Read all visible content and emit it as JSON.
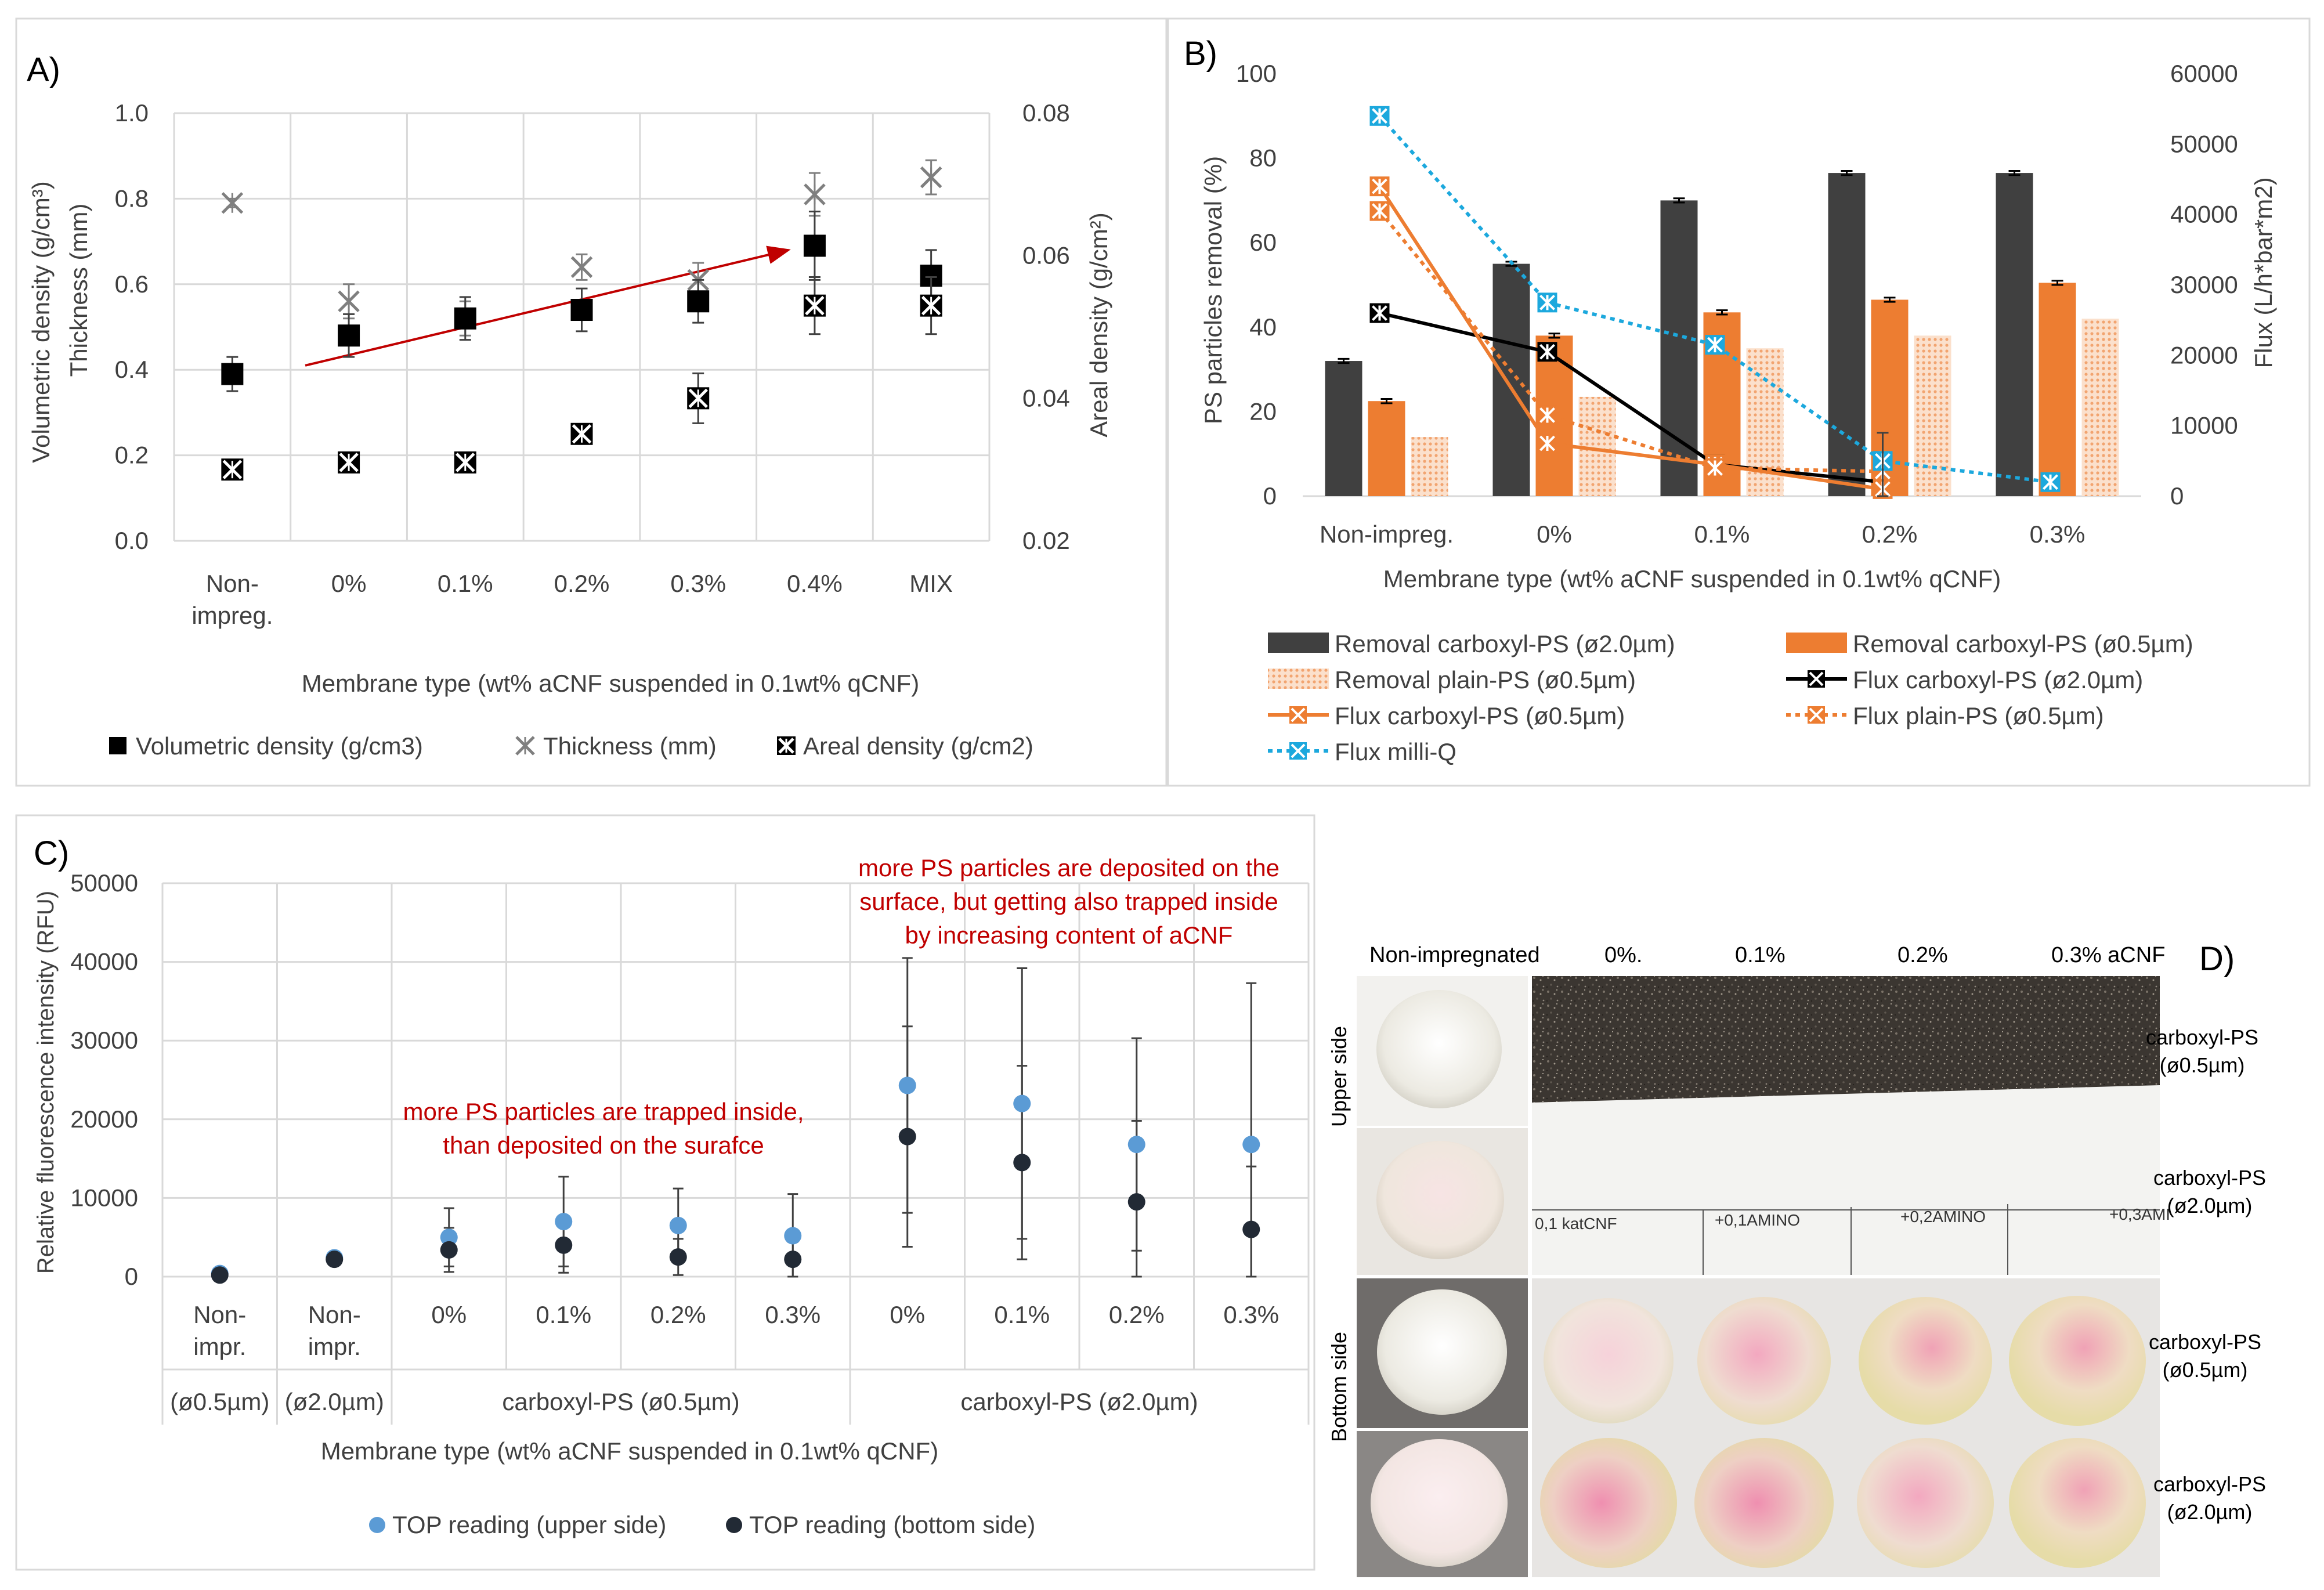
{
  "colors": {
    "dark": "#404040",
    "orange": "#ED7D31",
    "light_orange": "#F8C9A8",
    "blue": "#1CA8DD",
    "point_blue": "#5B9BD5",
    "point_dark": "#222A35",
    "red": "#C00000",
    "grey": "#7F7F7F",
    "grid": "#D9D9D9"
  },
  "panel_labels": {
    "a": "A)",
    "b": "B)",
    "c": "C)",
    "d": "D)"
  },
  "chart_data": [
    {
      "id": "A",
      "type": "scatter",
      "title": "",
      "categories": [
        "Non-impreg.",
        "0%",
        "0.1%",
        "0.2%",
        "0.3%",
        "0.4%",
        "MIX"
      ],
      "xlabel": "Membrane type (wt% aCNF suspended in 0.1wt% qCNF)",
      "ylabel_left_1": "Volumetric density (g/cm³)",
      "ylabel_left_2": "Thickness (mm)",
      "ylabel_right": "Areal density (g/cm²)",
      "ylim_left": [
        0,
        1
      ],
      "yticks_left": [
        "0.0",
        "0.2",
        "0.4",
        "0.6",
        "0.8",
        "1.0"
      ],
      "ylim_right": [
        0.02,
        0.08
      ],
      "yticks_right": [
        "0.02",
        "0.04",
        "0.06",
        "0.08"
      ],
      "series": [
        {
          "name": "Volumetric density (g/cm3)",
          "axis": "left",
          "marker": "square",
          "values": [
            0.39,
            0.48,
            0.52,
            0.54,
            0.56,
            0.69,
            0.62
          ],
          "err": [
            0.04,
            0.05,
            0.05,
            0.05,
            0.05,
            0.08,
            0.06
          ]
        },
        {
          "name": "Thickness (mm)",
          "axis": "left",
          "marker": "x",
          "values": [
            0.79,
            0.56,
            0.52,
            0.64,
            0.61,
            0.81,
            0.85
          ],
          "err": [
            0.01,
            0.04,
            0.04,
            0.03,
            0.04,
            0.05,
            0.04
          ]
        },
        {
          "name": "Areal density (g/cm2)",
          "axis": "right",
          "marker": "hourglass",
          "values": [
            0.03,
            0.031,
            0.031,
            0.035,
            0.04,
            0.053,
            0.053
          ],
          "err": [
            0.0,
            0.0,
            0.0,
            0.0,
            0.0035,
            0.004,
            0.004
          ]
        }
      ],
      "trend_arrow": {
        "from_category": 1,
        "from_value": 0.41,
        "to_category": 5,
        "to_value": 0.68
      }
    },
    {
      "id": "B",
      "type": "bar",
      "categories": [
        "Non-impreg.",
        "0%",
        "0.1%",
        "0.2%",
        "0.3%"
      ],
      "xlabel": "Membrane type (wt% aCNF suspended in 0.1wt% qCNF)",
      "ylabel_left": "PS particles removal (%)",
      "ylabel_right": "Flux (L/h*bar*m2)",
      "ylim_left": [
        0,
        100
      ],
      "yticks_left": [
        "0",
        "20",
        "40",
        "60",
        "80",
        "100"
      ],
      "ylim_right": [
        0,
        60000
      ],
      "yticks_right": [
        "0",
        "10000",
        "20000",
        "30000",
        "40000",
        "50000",
        "60000"
      ],
      "bar_series": [
        {
          "name": "Removal carboxyl-PS (ø2.0µm)",
          "values": [
            32,
            55,
            70,
            76.5,
            76.5
          ],
          "err": [
            0.5,
            0.5,
            0.5,
            0.5,
            0.5
          ]
        },
        {
          "name": "Removal carboxyl-PS (ø0.5µm)",
          "values": [
            22.5,
            38,
            43.5,
            46.5,
            50.5
          ],
          "err": [
            0.5,
            0.5,
            0.5,
            0.5,
            0.5
          ]
        },
        {
          "name": "Removal plain-PS (ø0.5µm)",
          "values": [
            14,
            23.5,
            35,
            38,
            42
          ],
          "err": [
            0,
            0,
            0,
            0,
            0
          ]
        }
      ],
      "line_series": [
        {
          "name": "Flux carboxyl-PS (ø2.0µm)",
          "values": [
            26000,
            20500,
            4500,
            2000,
            null
          ],
          "style": "solid-black"
        },
        {
          "name": "Flux carboxyl-PS (ø0.5µm)",
          "values": [
            44000,
            7500,
            4500,
            1000,
            null
          ],
          "style": "solid-orange"
        },
        {
          "name": "Flux plain-PS (ø0.5µm)",
          "values": [
            40500,
            11500,
            4000,
            3500,
            null
          ],
          "style": "dotted-orange"
        },
        {
          "name": "Flux milli-Q",
          "values": [
            54000,
            27500,
            21500,
            5000,
            2000
          ],
          "style": "dotted-blue"
        }
      ]
    },
    {
      "id": "C",
      "type": "scatter",
      "categories": [
        "Non-impr.",
        "Non-impr.",
        "0%",
        "0.1%",
        "0.2%",
        "0.3%",
        "0%",
        "0.1%",
        "0.2%",
        "0.3%"
      ],
      "group_labels": [
        "(ø0.5µm)",
        "(ø2.0µm)",
        "carboxyl-PS (ø0.5µm)",
        "carboxyl-PS (ø2.0µm)"
      ],
      "xlabel": "Membrane type (wt% aCNF suspended in 0.1wt% qCNF)",
      "ylabel": "Relative fluorescence intensity (RFU)",
      "ylim": [
        0,
        50000
      ],
      "yticks": [
        "0",
        "10000",
        "20000",
        "30000",
        "40000",
        "50000"
      ],
      "series": [
        {
          "name": "TOP reading (upper side)",
          "values": [
            400,
            2400,
            5000,
            7000,
            6500,
            5200,
            24300,
            22000,
            16800,
            16800
          ],
          "err": [
            200,
            500,
            3700,
            5700,
            4700,
            5300,
            16200,
            17200,
            13500,
            20500
          ]
        },
        {
          "name": "TOP reading (bottom side)",
          "values": [
            200,
            2200,
            3400,
            4000,
            2500,
            2200,
            17800,
            14500,
            9500,
            6000
          ],
          "err": [
            100,
            500,
            2800,
            3500,
            2300,
            2200,
            14000,
            12300,
            10300,
            8000
          ]
        }
      ],
      "annotations": [
        [
          "more PS particles are trapped inside,",
          "than deposited on the surafce"
        ],
        [
          "more PS particles are deposited on the",
          "surface, but getting  also trapped inside",
          "by increasing content of aCNF"
        ]
      ]
    }
  ],
  "panel_d": {
    "column_labels": [
      "Non-impregnated",
      "0%.",
      "0.1%",
      "0.2%",
      "0.3% aCNF"
    ],
    "side_labels": [
      "Upper side",
      "Bottom side"
    ],
    "row_labels": [
      [
        "carboxyl-PS",
        "(ø0.5µm)"
      ],
      [
        "carboxyl-PS",
        "(ø2.0µm)"
      ],
      [
        "carboxyl-PS",
        "(ø0.5µm)"
      ],
      [
        "carboxyl-PS",
        "(ø2.0µm)"
      ]
    ],
    "paper_labels": [
      "0,1 katCNF",
      "+0,1AMINO",
      "+0,2AMINO",
      "+0,3AMI"
    ]
  }
}
